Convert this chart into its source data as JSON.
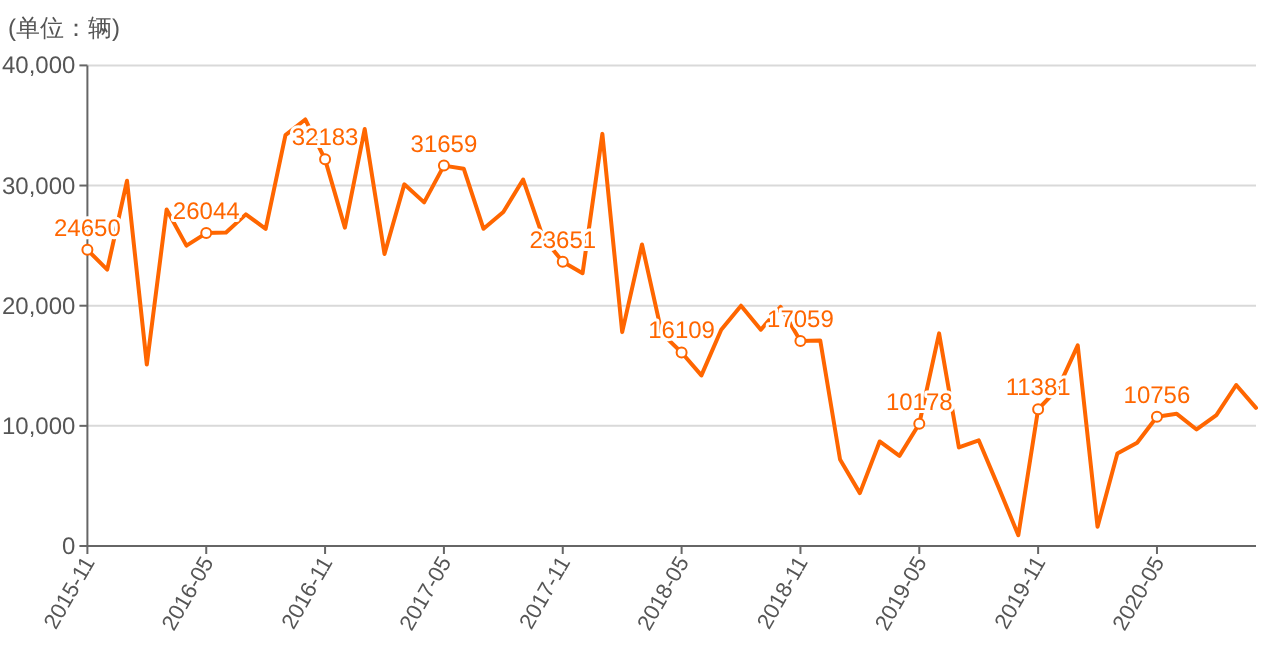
{
  "chart_data": {
    "type": "line",
    "ylabel": "(单位：辆)",
    "categories": [
      "2015-11",
      null,
      null,
      null,
      null,
      null,
      "2016-05",
      null,
      null,
      null,
      null,
      null,
      "2016-11",
      null,
      null,
      null,
      null,
      null,
      "2017-05",
      null,
      null,
      null,
      null,
      null,
      "2017-11",
      null,
      null,
      null,
      null,
      null,
      "2018-05",
      null,
      null,
      null,
      null,
      null,
      "2018-11",
      null,
      null,
      null,
      null,
      null,
      "2019-05",
      null,
      null,
      null,
      null,
      null,
      "2019-11",
      null,
      null,
      null,
      null,
      null,
      "2020-05",
      null,
      null,
      null,
      null,
      null
    ],
    "series": [
      {
        "color": "#ff6600",
        "values": [
          24650,
          23000,
          30400,
          15100,
          28000,
          25000,
          26044,
          26100,
          27600,
          26400,
          34200,
          35500,
          32183,
          26500,
          34700,
          24300,
          30100,
          28600,
          31659,
          31400,
          26400,
          27800,
          30500,
          25700,
          23651,
          22700,
          34300,
          17800,
          25100,
          17700,
          16109,
          14200,
          18000,
          20000,
          18000,
          19900,
          17059,
          17100,
          7200,
          4400,
          8700,
          7500,
          10178,
          17700,
          8200,
          8800,
          4900,
          900,
          11381,
          13100,
          16700,
          1600,
          7700,
          8600,
          10756,
          11000,
          9700,
          10900,
          13400,
          11500
        ],
        "value_labels": [
          "24650",
          null,
          null,
          null,
          null,
          null,
          "26044",
          null,
          null,
          null,
          null,
          null,
          "32183",
          null,
          null,
          null,
          null,
          null,
          "31659",
          null,
          null,
          null,
          null,
          null,
          "23651",
          null,
          null,
          null,
          null,
          null,
          "16109",
          null,
          null,
          null,
          null,
          null,
          "17059",
          null,
          null,
          null,
          null,
          null,
          "10178",
          null,
          null,
          null,
          null,
          null,
          "11381",
          null,
          null,
          null,
          null,
          null,
          "10756",
          null,
          null,
          null,
          null,
          null
        ]
      }
    ],
    "ylim": [
      0,
      40000
    ],
    "yticks": [
      {
        "value": 0,
        "label": "0"
      },
      {
        "value": 10000,
        "label": "10,000"
      },
      {
        "value": 20000,
        "label": "20,000"
      },
      {
        "value": 30000,
        "label": "30,000"
      },
      {
        "value": 40000,
        "label": "40,000"
      }
    ],
    "grid": "y",
    "line_style": "solid"
  }
}
